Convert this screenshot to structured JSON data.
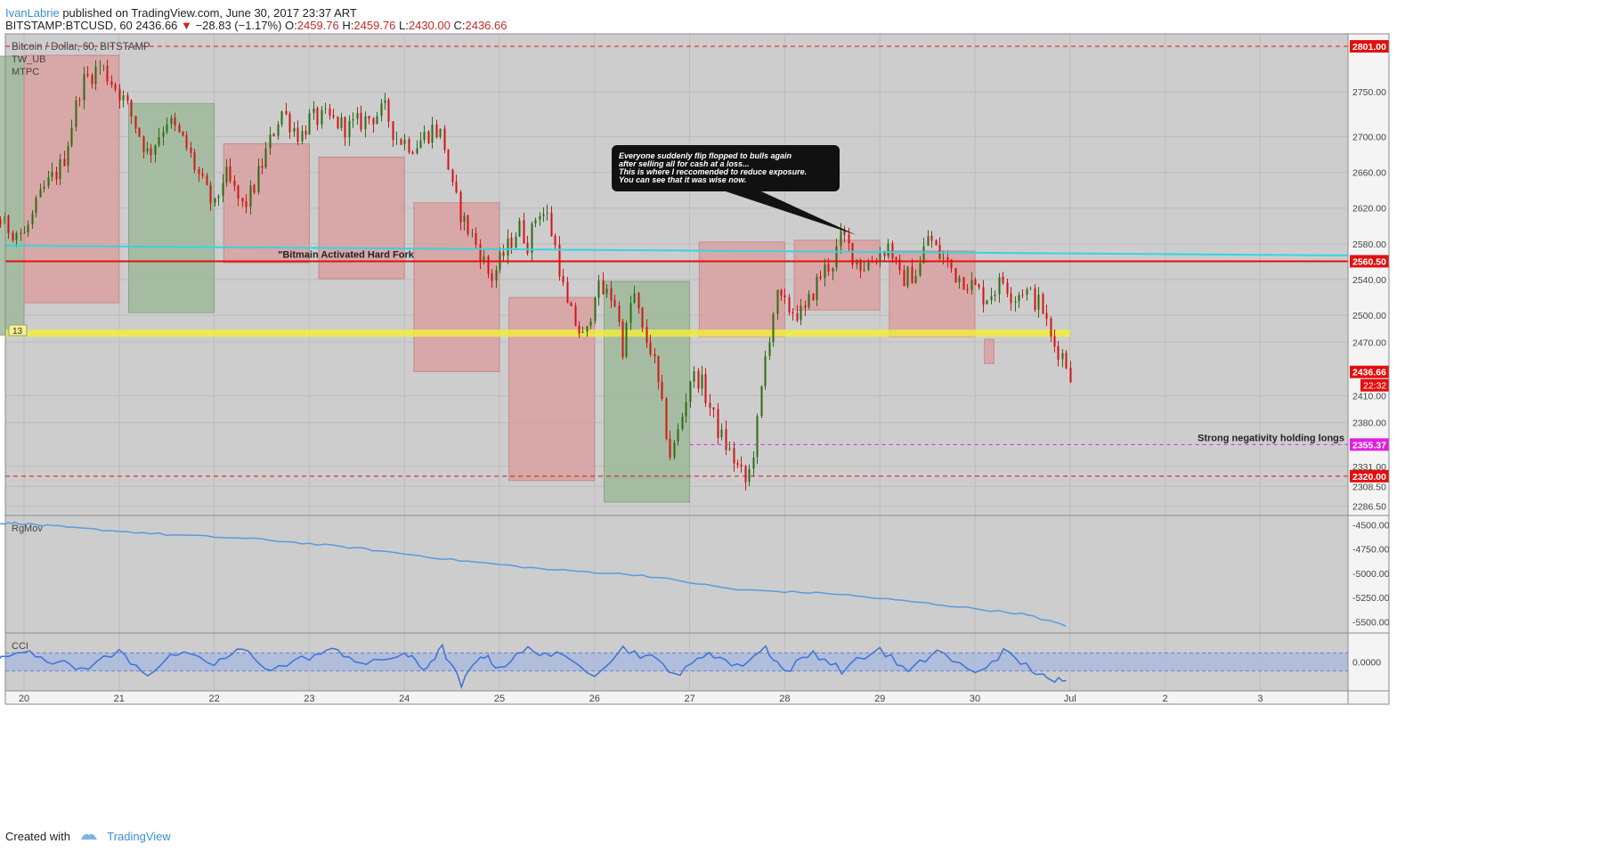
{
  "header": {
    "author": "IvanLabrie",
    "published_text": " published on TradingView.com, June 30, 2017 23:37 ART"
  },
  "quote": {
    "symbol": "BITSTAMP:BTCUSD, 60",
    "last": "2436.66",
    "change": "−28.83 (−1.17%)",
    "open_label": "O:",
    "open": "2459.76",
    "high_label": "H:",
    "high": "2459.76",
    "low_label": "L:",
    "low": "2430.00",
    "close_label": "C:",
    "close": "2436.66"
  },
  "footer": {
    "created_with": "Created with",
    "brand": "TradingView"
  },
  "colors": {
    "bg": "#cdcdcd",
    "up": "#2e6b12",
    "down": "#d21414",
    "green_box": "#9fb89a",
    "red_box": "#d9a0a0",
    "cyan": "#37d3e0",
    "support_red": "#e01010",
    "yellow": "#f2ef3c",
    "magenta": "#e020e0",
    "indicator": "#5b9bde"
  },
  "chart_data": [
    {
      "type": "candlestick",
      "title": "Bitcoin / Dollar, 60, BITSTAMP",
      "studies": [
        "TW_UB",
        "MTPC"
      ],
      "x_ticks": [
        "20",
        "21",
        "22",
        "23",
        "24",
        "25",
        "26",
        "27",
        "28",
        "29",
        "30",
        "Jul",
        "2",
        "3"
      ],
      "y_ticks": [
        "2750.00",
        "2700.00",
        "2660.00",
        "2620.00",
        "2580.00",
        "2540.00",
        "2500.00",
        "2470.00",
        "2410.00",
        "2380.00",
        "2331.00",
        "2308.50",
        "2286.50"
      ],
      "ylim": [
        2276,
        2815
      ],
      "close_path": [
        [
          19.0,
          2535
        ],
        [
          19.2,
          2600
        ],
        [
          19.4,
          2650
        ],
        [
          19.6,
          2620
        ],
        [
          19.8,
          2600
        ],
        [
          20.0,
          2590
        ],
        [
          20.2,
          2640
        ],
        [
          20.4,
          2670
        ],
        [
          20.6,
          2760
        ],
        [
          20.8,
          2780
        ],
        [
          21.0,
          2750
        ],
        [
          21.1,
          2730
        ],
        [
          21.3,
          2680
        ],
        [
          21.5,
          2720
        ],
        [
          21.7,
          2690
        ],
        [
          21.9,
          2640
        ],
        [
          22.0,
          2620
        ],
        [
          22.1,
          2660
        ],
        [
          22.3,
          2620
        ],
        [
          22.4,
          2640
        ],
        [
          22.6,
          2700
        ],
        [
          22.7,
          2730
        ],
        [
          22.9,
          2700
        ],
        [
          23.0,
          2720
        ],
        [
          23.2,
          2720
        ],
        [
          23.4,
          2710
        ],
        [
          23.6,
          2720
        ],
        [
          23.8,
          2730
        ],
        [
          23.9,
          2700
        ],
        [
          24.1,
          2690
        ],
        [
          24.3,
          2710
        ],
        [
          24.4,
          2700
        ],
        [
          24.5,
          2640
        ],
        [
          24.6,
          2610
        ],
        [
          24.8,
          2570
        ],
        [
          24.9,
          2540
        ],
        [
          25.0,
          2560
        ],
        [
          25.2,
          2600
        ],
        [
          25.3,
          2580
        ],
        [
          25.4,
          2620
        ],
        [
          25.5,
          2610
        ],
        [
          25.6,
          2570
        ],
        [
          25.7,
          2510
        ],
        [
          25.9,
          2470
        ],
        [
          26.0,
          2530
        ],
        [
          26.2,
          2520
        ],
        [
          26.3,
          2460
        ],
        [
          26.4,
          2530
        ],
        [
          26.5,
          2480
        ],
        [
          26.6,
          2460
        ],
        [
          26.7,
          2400
        ],
        [
          26.8,
          2340
        ],
        [
          26.9,
          2380
        ],
        [
          27.0,
          2430
        ],
        [
          27.1,
          2430
        ],
        [
          27.2,
          2400
        ],
        [
          27.3,
          2370
        ],
        [
          27.5,
          2330
        ],
        [
          27.6,
          2310
        ],
        [
          27.7,
          2370
        ],
        [
          27.8,
          2460
        ],
        [
          27.9,
          2520
        ],
        [
          28.0,
          2510
        ],
        [
          28.2,
          2500
        ],
        [
          28.3,
          2530
        ],
        [
          28.4,
          2550
        ],
        [
          28.5,
          2560
        ],
        [
          28.6,
          2590
        ],
        [
          28.7,
          2570
        ],
        [
          28.8,
          2555
        ],
        [
          28.9,
          2560
        ],
        [
          29.0,
          2570
        ],
        [
          29.1,
          2580
        ],
        [
          29.2,
          2540
        ],
        [
          29.4,
          2550
        ],
        [
          29.5,
          2590
        ],
        [
          29.6,
          2570
        ],
        [
          29.7,
          2560
        ],
        [
          29.8,
          2545
        ],
        [
          29.9,
          2540
        ],
        [
          30.0,
          2530
        ],
        [
          30.1,
          2520
        ],
        [
          30.3,
          2540
        ],
        [
          30.4,
          2520
        ],
        [
          30.5,
          2530
        ],
        [
          30.7,
          2510
        ],
        [
          30.8,
          2470
        ],
        [
          30.9,
          2460
        ],
        [
          31.0,
          2436.66
        ]
      ],
      "zones": [
        {
          "kind": "green",
          "x": [
            19.1,
            20.0
          ],
          "y": [
            2478,
            2790
          ]
        },
        {
          "kind": "red",
          "x": [
            20.0,
            21.0
          ],
          "y": [
            2514,
            2791
          ]
        },
        {
          "kind": "green",
          "x": [
            21.1,
            22.0
          ],
          "y": [
            2503,
            2737
          ]
        },
        {
          "kind": "red",
          "x": [
            22.1,
            23.0
          ],
          "y": [
            2559,
            2692
          ]
        },
        {
          "kind": "red",
          "x": [
            23.1,
            24.0
          ],
          "y": [
            2541,
            2677
          ]
        },
        {
          "kind": "red",
          "x": [
            24.1,
            25.0
          ],
          "y": [
            2437,
            2626
          ]
        },
        {
          "kind": "red",
          "x": [
            25.1,
            26.0
          ],
          "y": [
            2315,
            2520
          ]
        },
        {
          "kind": "green",
          "x": [
            26.1,
            27.0
          ],
          "y": [
            2291,
            2538
          ]
        },
        {
          "kind": "red",
          "x": [
            27.1,
            28.0
          ],
          "y": [
            2476,
            2582
          ]
        },
        {
          "kind": "red",
          "x": [
            28.1,
            29.0
          ],
          "y": [
            2506,
            2584
          ]
        },
        {
          "kind": "red",
          "x": [
            29.1,
            30.0
          ],
          "y": [
            2476,
            2572
          ]
        },
        {
          "kind": "red",
          "x": [
            30.1,
            30.2
          ],
          "y": [
            2446,
            2473
          ]
        }
      ],
      "lines": [
        {
          "kind": "dashed-red",
          "y": 2801.0,
          "label": "2801.00"
        },
        {
          "kind": "solid-red",
          "y": 2560.5,
          "label": "2560.50"
        },
        {
          "kind": "dashed-red",
          "y": 2320.0,
          "label": "2320.00"
        },
        {
          "kind": "dashed-magenta",
          "y": 2355.37,
          "label": "2355.37",
          "from_x": 27.0
        },
        {
          "kind": "cyan-trend",
          "y_start": 2578,
          "y_end": 2567
        },
        {
          "kind": "yellow-band",
          "y": [
            2476,
            2484
          ]
        }
      ],
      "price_label": {
        "value": "2436.66",
        "countdown": "22:32"
      },
      "yellow_badge": "13",
      "annotations": {
        "fork": "\"Bitmain Activated Hard Fork",
        "negativity": "Strong negativity holding longs",
        "callout": [
          "Everyone suddenly flip flopped to bulls again",
          "after selling all for cash at a loss...",
          "This is where I reccomended to reduce exposure.",
          "You can see that it was wise now."
        ]
      }
    },
    {
      "type": "line",
      "title": "RgMov",
      "y_ticks": [
        "-4500.00",
        "-4750.00",
        "-5000.00",
        "-5250.00",
        "-5500.00"
      ],
      "ylim": [
        -5580,
        -4440
      ],
      "x": [
        19.0,
        19.5,
        19.9,
        20.5,
        21.5,
        22.5,
        23.5,
        24.5,
        25.5,
        26.5,
        27.5,
        28.5,
        29.5,
        30.5,
        31.0
      ],
      "values": [
        -4490,
        -4500,
        -4480,
        -4530,
        -4600,
        -4650,
        -4740,
        -4860,
        -4960,
        -5020,
        -5170,
        -5210,
        -5310,
        -5420,
        -5550
      ]
    },
    {
      "type": "line",
      "title": "CCI",
      "y_ticks": [
        "0.0000"
      ],
      "ylim": [
        -300,
        300
      ],
      "band": [
        -100,
        100
      ],
      "x": [
        19.0,
        19.3,
        19.6,
        20.0,
        20.3,
        20.6,
        21.0,
        21.3,
        21.6,
        22.0,
        22.3,
        22.6,
        23.0,
        23.3,
        23.6,
        24.0,
        24.2,
        24.4,
        24.6,
        24.8,
        25.0,
        25.3,
        25.6,
        26.0,
        26.3,
        26.6,
        26.9,
        27.2,
        27.5,
        27.8,
        28.0,
        28.3,
        28.6,
        29.0,
        29.3,
        29.6,
        30.0,
        30.3,
        30.6,
        30.8,
        31.0
      ],
      "values": [
        60,
        120,
        -60,
        150,
        10,
        -80,
        110,
        -130,
        90,
        -20,
        140,
        -90,
        60,
        130,
        -40,
        100,
        -80,
        150,
        -260,
        90,
        -60,
        140,
        70,
        -120,
        150,
        40,
        -140,
        120,
        -60,
        160,
        -110,
        110,
        -90,
        150,
        -120,
        130,
        -140,
        110,
        -80,
        -230,
        -150
      ]
    }
  ]
}
